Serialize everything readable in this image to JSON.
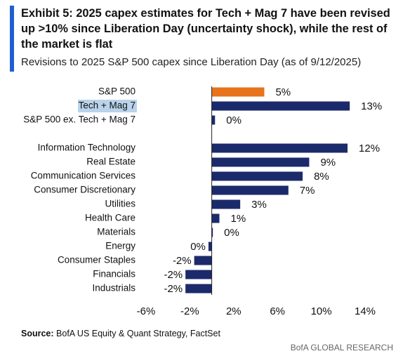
{
  "chart_data": {
    "type": "barh",
    "title": "Exhibit 5: 2025 capex estimates for Tech + Mag 7 have been revised up >10% since Liberation Day (uncertainty shock), while the rest of the market is flat",
    "subtitle": "Revisions to 2025 S&P 500 capex since Liberation Day (as of 9/12/2025)",
    "categories": [
      "S&P 500",
      "Tech + Mag 7",
      "S&P 500 ex. Tech + Mag 7",
      "Information Technology",
      "Real Estate",
      "Communication Services",
      "Consumer Discretionary",
      "Utilities",
      "Health Care",
      "Materials",
      "Energy",
      "Consumer Staples",
      "Financials",
      "Industrials"
    ],
    "values": [
      4.8,
      12.6,
      0.3,
      12.4,
      8.9,
      8.3,
      7.0,
      2.6,
      0.7,
      0.1,
      -0.3,
      -1.6,
      -2.4,
      -2.4
    ],
    "value_labels": [
      "5%",
      "13%",
      "0%",
      "12%",
      "9%",
      "8%",
      "7%",
      "3%",
      "1%",
      "0%",
      "0%",
      "-2%",
      "-2%",
      "-2%"
    ],
    "colors": [
      "#e8731a",
      "#1b2a6b",
      "#1b2a6b",
      "#1b2a6b",
      "#1b2a6b",
      "#1b2a6b",
      "#1b2a6b",
      "#1b2a6b",
      "#1b2a6b",
      "#1b2a6b",
      "#1b2a6b",
      "#1b2a6b",
      "#1b2a6b",
      "#1b2a6b"
    ],
    "xlim": [
      -6,
      14
    ],
    "xticks": [
      {
        "value": -6,
        "label": "-6%"
      },
      {
        "value": -2,
        "label": "-2%"
      },
      {
        "value": 2,
        "label": "2%"
      },
      {
        "value": 6,
        "label": "6%"
      },
      {
        "value": 10,
        "label": "10%"
      },
      {
        "value": 14,
        "label": "14%"
      }
    ],
    "source_label": "Source:",
    "source": "BofA US Equity & Quant Strategy, FactSet",
    "brand": "BofA GLOBAL RESEARCH"
  }
}
